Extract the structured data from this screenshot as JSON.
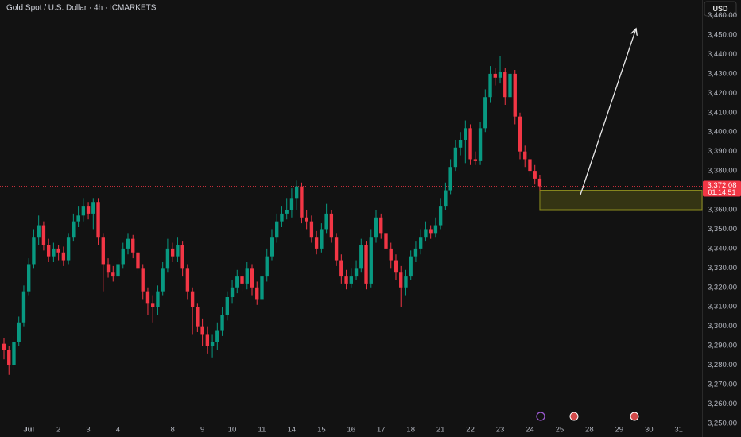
{
  "chart_data": {
    "type": "candlestick",
    "title": "Gold Spot / U.S. Dollar · 4h · ICMARKETS",
    "currency": "USD",
    "up_color": "#089981",
    "down_color": "#f23645",
    "x": [
      0,
      1,
      2,
      3,
      4,
      5,
      6,
      7,
      8,
      9,
      10,
      11,
      12,
      13,
      14,
      15,
      16,
      17,
      18,
      19,
      20,
      21,
      22,
      23,
      24,
      25,
      26,
      27,
      28,
      29,
      30,
      31,
      32,
      33,
      34,
      35,
      36,
      37,
      38,
      39,
      40,
      41,
      42,
      43,
      44,
      45,
      46,
      47,
      48,
      49,
      50,
      51,
      52,
      53,
      54,
      55,
      56,
      57,
      58,
      59,
      60,
      61,
      62,
      63,
      64,
      65,
      66,
      67,
      68,
      69,
      70,
      71,
      72,
      73,
      74,
      75,
      76,
      77,
      78,
      79,
      80,
      81,
      82,
      83,
      84,
      85,
      86,
      87,
      88,
      89,
      90,
      91,
      92,
      93,
      94,
      95,
      96,
      97,
      98,
      99,
      100,
      101,
      102,
      103,
      104,
      105,
      106,
      107,
      108
    ],
    "open": [
      3291,
      3288,
      3280,
      3292,
      3302,
      3318,
      3332,
      3346,
      3352,
      3342,
      3336,
      3340,
      3338,
      3334,
      3346,
      3354,
      3357,
      3362,
      3358,
      3364,
      3346,
      3332,
      3328,
      3326,
      3332,
      3340,
      3345,
      3338,
      3330,
      3318,
      3312,
      3310,
      3318,
      3330,
      3340,
      3336,
      3342,
      3330,
      3318,
      3310,
      3300,
      3296,
      3290,
      3292,
      3298,
      3306,
      3315,
      3320,
      3326,
      3322,
      3330,
      3320,
      3314,
      3326,
      3336,
      3346,
      3354,
      3358,
      3360,
      3366,
      3372,
      3356,
      3354,
      3346,
      3340,
      3350,
      3358,
      3346,
      3334,
      3326,
      3322,
      3326,
      3330,
      3342,
      3322,
      3346,
      3356,
      3348,
      3340,
      3334,
      3328,
      3320,
      3326,
      3336,
      3340,
      3346,
      3350,
      3348,
      3352,
      3362,
      3370,
      3382,
      3392,
      3396,
      3402,
      3386,
      3385,
      3402,
      3418,
      3430,
      3428,
      3431,
      3418,
      3430,
      3408,
      3390,
      3386,
      3380,
      3376
    ],
    "high": [
      3294,
      3290,
      3295,
      3305,
      3321,
      3335,
      3350,
      3357,
      3354,
      3345,
      3343,
      3342,
      3341,
      3348,
      3358,
      3362,
      3366,
      3364,
      3366,
      3366,
      3348,
      3335,
      3331,
      3335,
      3343,
      3348,
      3347,
      3340,
      3332,
      3320,
      3316,
      3321,
      3333,
      3345,
      3343,
      3346,
      3344,
      3332,
      3320,
      3312,
      3304,
      3300,
      3296,
      3302,
      3310,
      3318,
      3324,
      3329,
      3328,
      3333,
      3332,
      3323,
      3328,
      3340,
      3350,
      3358,
      3362,
      3366,
      3371,
      3375,
      3374,
      3360,
      3357,
      3349,
      3353,
      3363,
      3360,
      3348,
      3337,
      3329,
      3330,
      3334,
      3345,
      3344,
      3350,
      3360,
      3358,
      3350,
      3343,
      3337,
      3331,
      3329,
      3339,
      3344,
      3350,
      3354,
      3352,
      3356,
      3366,
      3374,
      3386,
      3396,
      3400,
      3406,
      3404,
      3390,
      3405,
      3422,
      3434,
      3433,
      3439,
      3433,
      3432,
      3432,
      3410,
      3393,
      3389,
      3383,
      3378
    ],
    "low": [
      3283,
      3275,
      3278,
      3290,
      3300,
      3316,
      3330,
      3342,
      3339,
      3333,
      3333,
      3334,
      3331,
      3332,
      3344,
      3351,
      3354,
      3355,
      3350,
      3342,
      3318,
      3325,
      3323,
      3324,
      3330,
      3337,
      3335,
      3327,
      3314,
      3306,
      3302,
      3306,
      3316,
      3328,
      3333,
      3333,
      3326,
      3314,
      3296,
      3297,
      3290,
      3286,
      3284,
      3288,
      3295,
      3303,
      3312,
      3317,
      3318,
      3319,
      3316,
      3311,
      3312,
      3323,
      3334,
      3343,
      3351,
      3355,
      3356,
      3360,
      3353,
      3350,
      3343,
      3337,
      3338,
      3348,
      3343,
      3331,
      3322,
      3319,
      3320,
      3324,
      3328,
      3319,
      3320,
      3343,
      3345,
      3336,
      3330,
      3324,
      3310,
      3316,
      3324,
      3333,
      3337,
      3344,
      3345,
      3346,
      3350,
      3360,
      3368,
      3380,
      3388,
      3384,
      3383,
      3383,
      3383,
      3400,
      3415,
      3424,
      3425,
      3414,
      3416,
      3404,
      3386,
      3382,
      3377,
      3373,
      3370
    ],
    "close": [
      3288,
      3280,
      3292,
      3302,
      3318,
      3332,
      3346,
      3352,
      3342,
      3336,
      3340,
      3338,
      3334,
      3346,
      3354,
      3357,
      3362,
      3358,
      3364,
      3346,
      3332,
      3328,
      3326,
      3332,
      3340,
      3345,
      3338,
      3330,
      3318,
      3312,
      3310,
      3318,
      3330,
      3340,
      3336,
      3342,
      3330,
      3318,
      3310,
      3300,
      3296,
      3290,
      3292,
      3298,
      3306,
      3315,
      3320,
      3326,
      3322,
      3330,
      3320,
      3314,
      3326,
      3336,
      3346,
      3354,
      3358,
      3360,
      3366,
      3372,
      3356,
      3354,
      3346,
      3340,
      3350,
      3358,
      3346,
      3334,
      3326,
      3322,
      3326,
      3330,
      3342,
      3322,
      3346,
      3356,
      3348,
      3340,
      3334,
      3328,
      3320,
      3326,
      3336,
      3340,
      3346,
      3350,
      3348,
      3352,
      3362,
      3370,
      3382,
      3392,
      3396,
      3402,
      3386,
      3385,
      3402,
      3418,
      3430,
      3428,
      3431,
      3418,
      3430,
      3408,
      3390,
      3386,
      3380,
      3376,
      3372.08
    ],
    "last_price": {
      "value": 3372.08,
      "label": "3,372.08"
    },
    "countdown": "01:14:51",
    "zone": [
      3360,
      3370
    ],
    "xlim": [
      -0.8,
      140.7
    ],
    "xticks": [
      {
        "value": 5,
        "label": "Jul"
      },
      {
        "value": 11,
        "label": "2"
      },
      {
        "value": 17,
        "label": "3"
      },
      {
        "value": 23,
        "label": "4"
      },
      {
        "value": 34,
        "label": "8"
      },
      {
        "value": 40,
        "label": "9"
      },
      {
        "value": 46,
        "label": "10"
      },
      {
        "value": 52,
        "label": "11"
      },
      {
        "value": 58,
        "label": "14"
      },
      {
        "value": 64,
        "label": "15"
      },
      {
        "value": 70,
        "label": "16"
      },
      {
        "value": 76,
        "label": "17"
      },
      {
        "value": 82,
        "label": "18"
      },
      {
        "value": 88,
        "label": "21"
      },
      {
        "value": 94,
        "label": "22"
      },
      {
        "value": 100,
        "label": "23"
      },
      {
        "value": 106,
        "label": "24"
      },
      {
        "value": 112,
        "label": "25"
      },
      {
        "value": 118,
        "label": "28"
      },
      {
        "value": 124,
        "label": "29"
      },
      {
        "value": 130,
        "label": "30"
      },
      {
        "value": 136,
        "label": "31"
      }
    ],
    "ylim": [
      3243,
      3468
    ],
    "yticks": [
      {
        "value": 3250,
        "label": "3,250.00"
      },
      {
        "value": 3260,
        "label": "3,260.00"
      },
      {
        "value": 3270,
        "label": "3,270.00"
      },
      {
        "value": 3280,
        "label": "3,280.00"
      },
      {
        "value": 3290,
        "label": "3,290.00"
      },
      {
        "value": 3300,
        "label": "3,300.00"
      },
      {
        "value": 3310,
        "label": "3,310.00"
      },
      {
        "value": 3320,
        "label": "3,320.00"
      },
      {
        "value": 3330,
        "label": "3,330.00"
      },
      {
        "value": 3340,
        "label": "3,340.00"
      },
      {
        "value": 3350,
        "label": "3,350.00"
      },
      {
        "value": 3360,
        "label": "3,360.00"
      },
      {
        "value": 3380,
        "label": "3,380.00"
      },
      {
        "value": 3390,
        "label": "3,390.00"
      },
      {
        "value": 3400,
        "label": "3,400.00"
      },
      {
        "value": 3410,
        "label": "3,410.00"
      },
      {
        "value": 3420,
        "label": "3,420.00"
      },
      {
        "value": 3430,
        "label": "3,430.00"
      },
      {
        "value": 3440,
        "label": "3,440.00"
      },
      {
        "value": 3450,
        "label": "3,450.00"
      },
      {
        "value": 3460,
        "label": "3,460.00"
      }
    ],
    "grid": false
  }
}
